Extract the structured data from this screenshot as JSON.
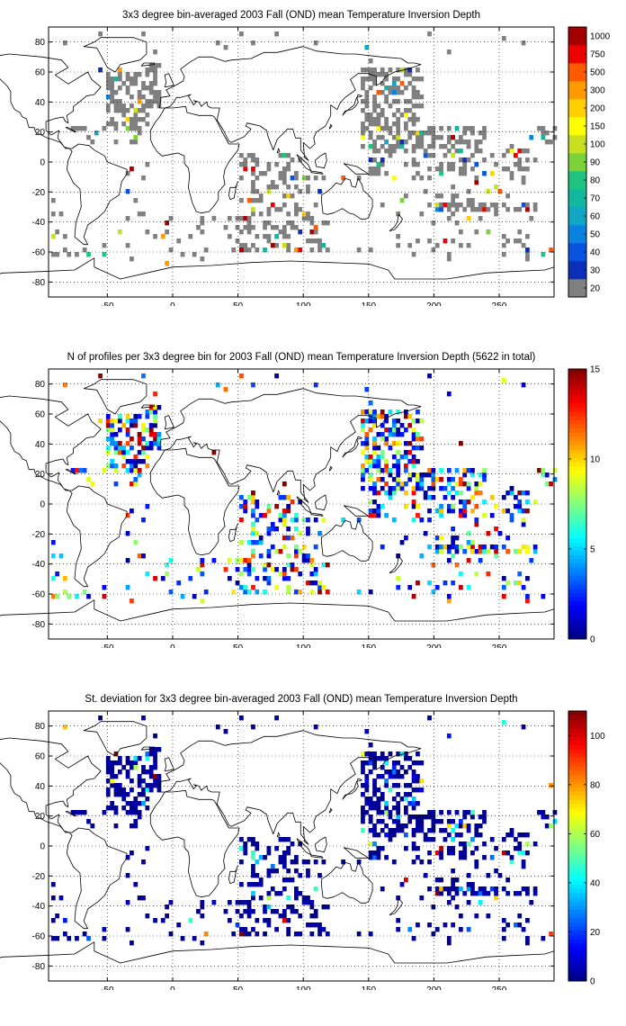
{
  "chart_data": [
    {
      "type": "heatmap",
      "title": "3x3 degree bin-averaged 2003 Fall (OND) mean Temperature Inversion Depth",
      "xlim": [
        -95,
        292
      ],
      "ylim": [
        -90,
        90
      ],
      "xticks": [
        -50,
        0,
        50,
        100,
        150,
        200,
        250
      ],
      "yticks": [
        -80,
        -60,
        -40,
        -20,
        0,
        20,
        40,
        60,
        80
      ],
      "grid": "dotted",
      "colorbar": {
        "type": "discrete",
        "labels": [
          "20",
          "30",
          "40",
          "50",
          "60",
          "70",
          "80",
          "90",
          "100",
          "150",
          "200",
          "300",
          "500",
          "750",
          "1000"
        ],
        "colors": [
          "#808080",
          "#0a2fb8",
          "#0a52e0",
          "#0a82e0",
          "#11a6c4",
          "#12b89e",
          "#1ec480",
          "#7cd23a",
          "#c8e020",
          "#ffff00",
          "#ffd000",
          "#ff9a00",
          "#ff5a00",
          "#ee0000",
          "#a50000"
        ]
      },
      "dominant_class": "20 (grey) — most bins",
      "sample_points": [
        {
          "lon": -55,
          "lat": 60,
          "value": 30
        },
        {
          "lon": -40,
          "lat": 60,
          "value": 300
        },
        {
          "lon": -30,
          "lat": 35,
          "value": 100
        },
        {
          "lon": -60,
          "lat": 18,
          "value": 60
        },
        {
          "lon": 75,
          "lat": -55,
          "value": 1000
        },
        {
          "lon": 80,
          "lat": -50,
          "value": 70
        },
        {
          "lon": 85,
          "lat": -55,
          "value": 100
        },
        {
          "lon": 175,
          "lat": 62,
          "value": 100
        },
        {
          "lon": 180,
          "lat": 62,
          "value": 30
        },
        {
          "lon": 170,
          "lat": 45,
          "value": 50
        },
        {
          "lon": 160,
          "lat": 0,
          "value": 30
        },
        {
          "lon": 275,
          "lat": 17,
          "value": 50
        },
        {
          "lon": 283,
          "lat": 15,
          "value": 70
        },
        {
          "lon": 270,
          "lat": -60,
          "value": 30
        },
        {
          "lon": 290,
          "lat": -60,
          "value": 500
        },
        {
          "lon": -5,
          "lat": -68,
          "value": 300
        },
        {
          "lon": -40,
          "lat": -48,
          "value": 100
        },
        {
          "lon": 53,
          "lat": -58,
          "value": 1000
        }
      ]
    },
    {
      "type": "heatmap",
      "title": "N of profiles per 3x3 degree bin for 2003 Fall (OND) mean Temperature Inversion Depth  (5622 in total)",
      "xlim": [
        -95,
        292
      ],
      "ylim": [
        -90,
        90
      ],
      "xticks": [
        -50,
        0,
        50,
        100,
        150,
        200,
        250
      ],
      "yticks": [
        -80,
        -60,
        -40,
        -20,
        0,
        20,
        40,
        60,
        80
      ],
      "grid": "dotted",
      "colorbar": {
        "type": "continuous",
        "colormap": "jet",
        "range": [
          0,
          15
        ],
        "ticks": [
          "0",
          "5",
          "10",
          "15"
        ]
      },
      "total_profiles": 5622,
      "sample_points": [
        {
          "lon": -55,
          "lat": 55,
          "value": 10
        },
        {
          "lon": -35,
          "lat": 40,
          "value": 12
        },
        {
          "lon": -25,
          "lat": 45,
          "value": 15
        },
        {
          "lon": 30,
          "lat": 35,
          "value": 15
        },
        {
          "lon": 62,
          "lat": 8,
          "value": 15
        },
        {
          "lon": 85,
          "lat": 12,
          "value": 15
        },
        {
          "lon": 160,
          "lat": 42,
          "value": 8
        },
        {
          "lon": 180,
          "lat": 40,
          "value": 15
        },
        {
          "lon": 220,
          "lat": 40,
          "value": 15
        },
        {
          "lon": 230,
          "lat": -32,
          "value": 10
        },
        {
          "lon": 100,
          "lat": -30,
          "value": 10
        }
      ]
    },
    {
      "type": "heatmap",
      "title": "St. deviation for 3x3 degree bin-averaged 2003 Fall (OND) mean Temperature Inversion Depth",
      "xlim": [
        -95,
        292
      ],
      "ylim": [
        -90,
        90
      ],
      "xticks": [
        -50,
        0,
        50,
        100,
        150,
        200,
        250
      ],
      "yticks": [
        -80,
        -60,
        -40,
        -20,
        0,
        20,
        40,
        60,
        80
      ],
      "grid": "dotted",
      "colorbar": {
        "type": "continuous",
        "colormap": "jet",
        "range": [
          0,
          110
        ],
        "ticks": [
          "0",
          "20",
          "40",
          "60",
          "80",
          "100"
        ]
      },
      "dominant_value": "near 0 (dark blue) — most bins",
      "sample_points": [
        {
          "lon": -45,
          "lat": 60,
          "value": 110
        },
        {
          "lon": -30,
          "lat": 52,
          "value": 60
        },
        {
          "lon": 85,
          "lat": -50,
          "value": 100
        },
        {
          "lon": 52,
          "lat": -60,
          "value": 110
        },
        {
          "lon": 175,
          "lat": 62,
          "value": 40
        },
        {
          "lon": 290,
          "lat": -58,
          "value": 90
        },
        {
          "lon": 290,
          "lat": 40,
          "value": 80
        }
      ]
    }
  ]
}
